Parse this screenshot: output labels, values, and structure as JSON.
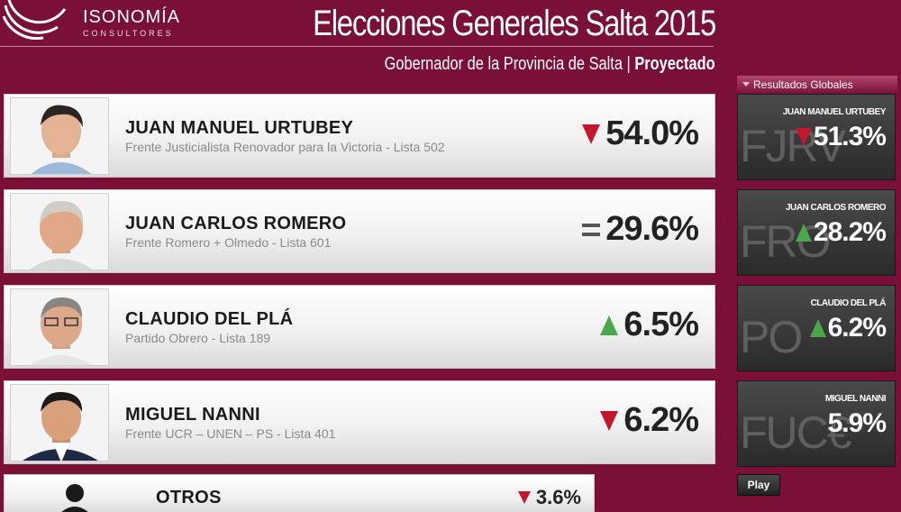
{
  "header": {
    "logo_name": "ISONOMÍA",
    "logo_sub": "CONSULTORES",
    "title": "Elecciones Generales Salta 2015",
    "subtitle_main": "Gobernador de la Provincia de Salta | ",
    "subtitle_bold": "Proyectado"
  },
  "candidates": [
    {
      "name": "JUAN MANUEL URTUBEY",
      "party": "Frente Justicialista Renovador para la Victoria - Lista 502",
      "percent": "54.0%",
      "trend": "down"
    },
    {
      "name": "JUAN CARLOS ROMERO",
      "party": "Frente Romero + Olmedo - Lista 601",
      "percent": "29.6%",
      "trend": "equal"
    },
    {
      "name": "CLAUDIO DEL PLÁ",
      "party": "Partido Obrero - Lista 189",
      "percent": "6.5%",
      "trend": "up"
    },
    {
      "name": "MIGUEL NANNI",
      "party": "Frente UCR – UNEN – PS - Lista 401",
      "percent": "6.2%",
      "trend": "down"
    }
  ],
  "others": {
    "name": "OTROS",
    "percent": "3.6%",
    "trend": "down"
  },
  "results_panel": {
    "title": "Resultados Globales",
    "items": [
      {
        "abbr": "FJRV",
        "name": "JUAN MANUEL URTUBEY",
        "percent": "51.3%",
        "trend": "down"
      },
      {
        "abbr": "FRO",
        "name": "JUAN CARLOS ROMERO",
        "percent": "28.2%",
        "trend": "up"
      },
      {
        "abbr": "PO",
        "name": "CLAUDIO DEL PLÁ",
        "percent": "6.2%",
        "trend": "up"
      },
      {
        "abbr": "FUC€",
        "name": "MIGUEL NANNI",
        "percent": "5.9%",
        "trend": "none"
      }
    ],
    "play_label": "Play"
  },
  "colors": {
    "background": "#7a1038",
    "trend_down": "#c4172c",
    "trend_up": "#4aa84a"
  }
}
